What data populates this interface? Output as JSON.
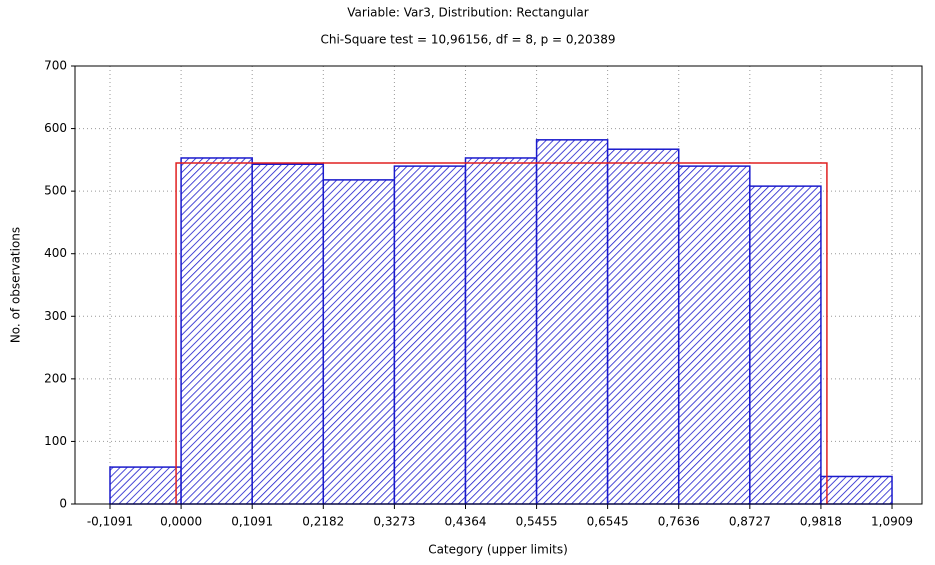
{
  "chart_data": {
    "type": "histogram",
    "title": "Variable: Var3, Distribution: Rectangular",
    "subtitle": "Chi-Square test = 10,96156, df = 8, p = 0,20389",
    "x_label": "Category (upper limits)",
    "y_label": "No. of observations",
    "bins": [
      -0.1091,
      0,
      0.1091,
      0.2182,
      0.3273,
      0.4364,
      0.5455,
      0.6545,
      0.7636,
      0.8727,
      0.9818,
      1.0909
    ],
    "counts": [
      59,
      553,
      543,
      518,
      540,
      553,
      582,
      567,
      540,
      508,
      44
    ],
    "color": "#1a1acc",
    "curve": {
      "color": "#e02020",
      "x": [
        -0.0077,
        -0.0077,
        0.991,
        0.991
      ],
      "values": [
        0,
        545,
        545,
        0
      ]
    },
    "xlim": [
      -0.1628,
      1.1369
    ],
    "xticks": [
      {
        "value": -0.1091,
        "label": "-0,1091"
      },
      {
        "value": 0,
        "label": "0,0000"
      },
      {
        "value": 0.1091,
        "label": "0,1091"
      },
      {
        "value": 0.2182,
        "label": "0,2182"
      },
      {
        "value": 0.3273,
        "label": "0,3273"
      },
      {
        "value": 0.4364,
        "label": "0,4364"
      },
      {
        "value": 0.5455,
        "label": "0,5455"
      },
      {
        "value": 0.6545,
        "label": "0,6545"
      },
      {
        "value": 0.7636,
        "label": "0,7636"
      },
      {
        "value": 0.8727,
        "label": "0,8727"
      },
      {
        "value": 0.9818,
        "label": "0,9818"
      },
      {
        "value": 1.0909,
        "label": "1,0909"
      }
    ],
    "ylim": [
      0,
      700
    ],
    "yticks": [
      0,
      100,
      200,
      300,
      400,
      500,
      600,
      700
    ],
    "grid": true
  }
}
